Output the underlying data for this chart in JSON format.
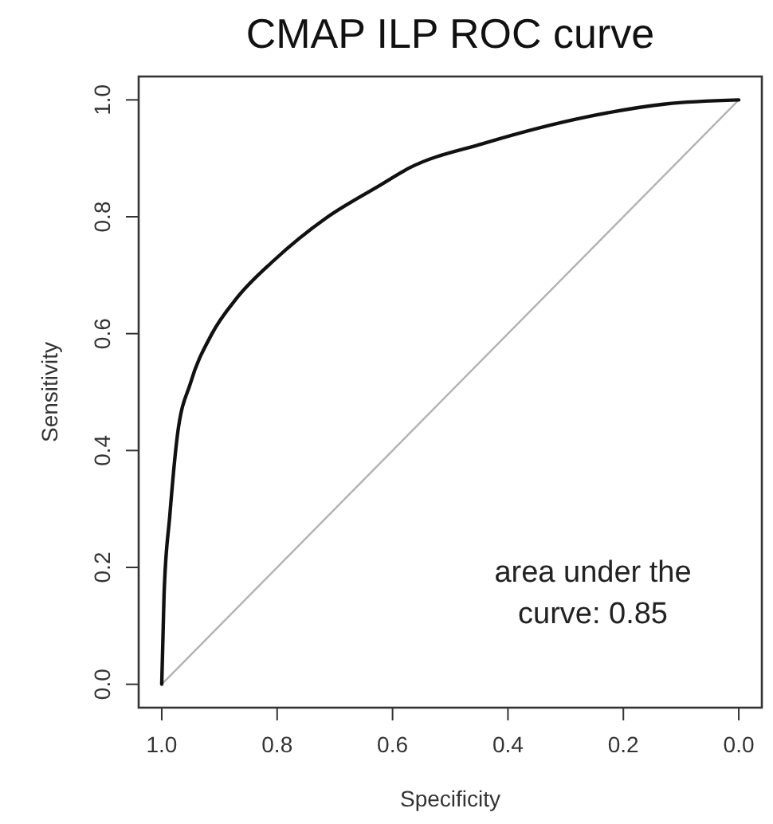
{
  "chart_data": {
    "type": "line",
    "title": "CMAP ILP ROC curve",
    "xlabel": "Specificity",
    "ylabel": "Sensitivity",
    "xlim": [
      1.04,
      -0.04
    ],
    "ylim": [
      -0.04,
      1.04
    ],
    "xticks": [
      {
        "value": 1,
        "label": "1.0"
      },
      0.8,
      0.6,
      0.4,
      0.2,
      {
        "value": 0,
        "label": "0.0"
      }
    ],
    "yticks": [
      {
        "value": 0,
        "label": "0.0"
      },
      0.2,
      0.4,
      0.6,
      0.8,
      {
        "value": 1,
        "label": "1.0"
      }
    ],
    "grid": false,
    "marker": "none",
    "line_style": "solid",
    "series": [
      {
        "color": "#b3b3b3",
        "x": [
          1,
          0
        ],
        "values": [
          0,
          1
        ]
      },
      {
        "color": "#111111",
        "x": [
          1,
          0.996,
          0.986,
          0.973,
          0.95,
          0.914,
          0.869,
          0.806,
          0.715,
          0.625,
          0.57,
          0.444,
          0.263,
          0.127,
          0
        ],
        "values": [
          0,
          0.153,
          0.289,
          0.425,
          0.516,
          0.598,
          0.662,
          0.725,
          0.798,
          0.852,
          0.884,
          0.925,
          0.971,
          0.993,
          1
        ]
      }
    ],
    "annotations": [
      "area under the curve: 0.85"
    ]
  }
}
